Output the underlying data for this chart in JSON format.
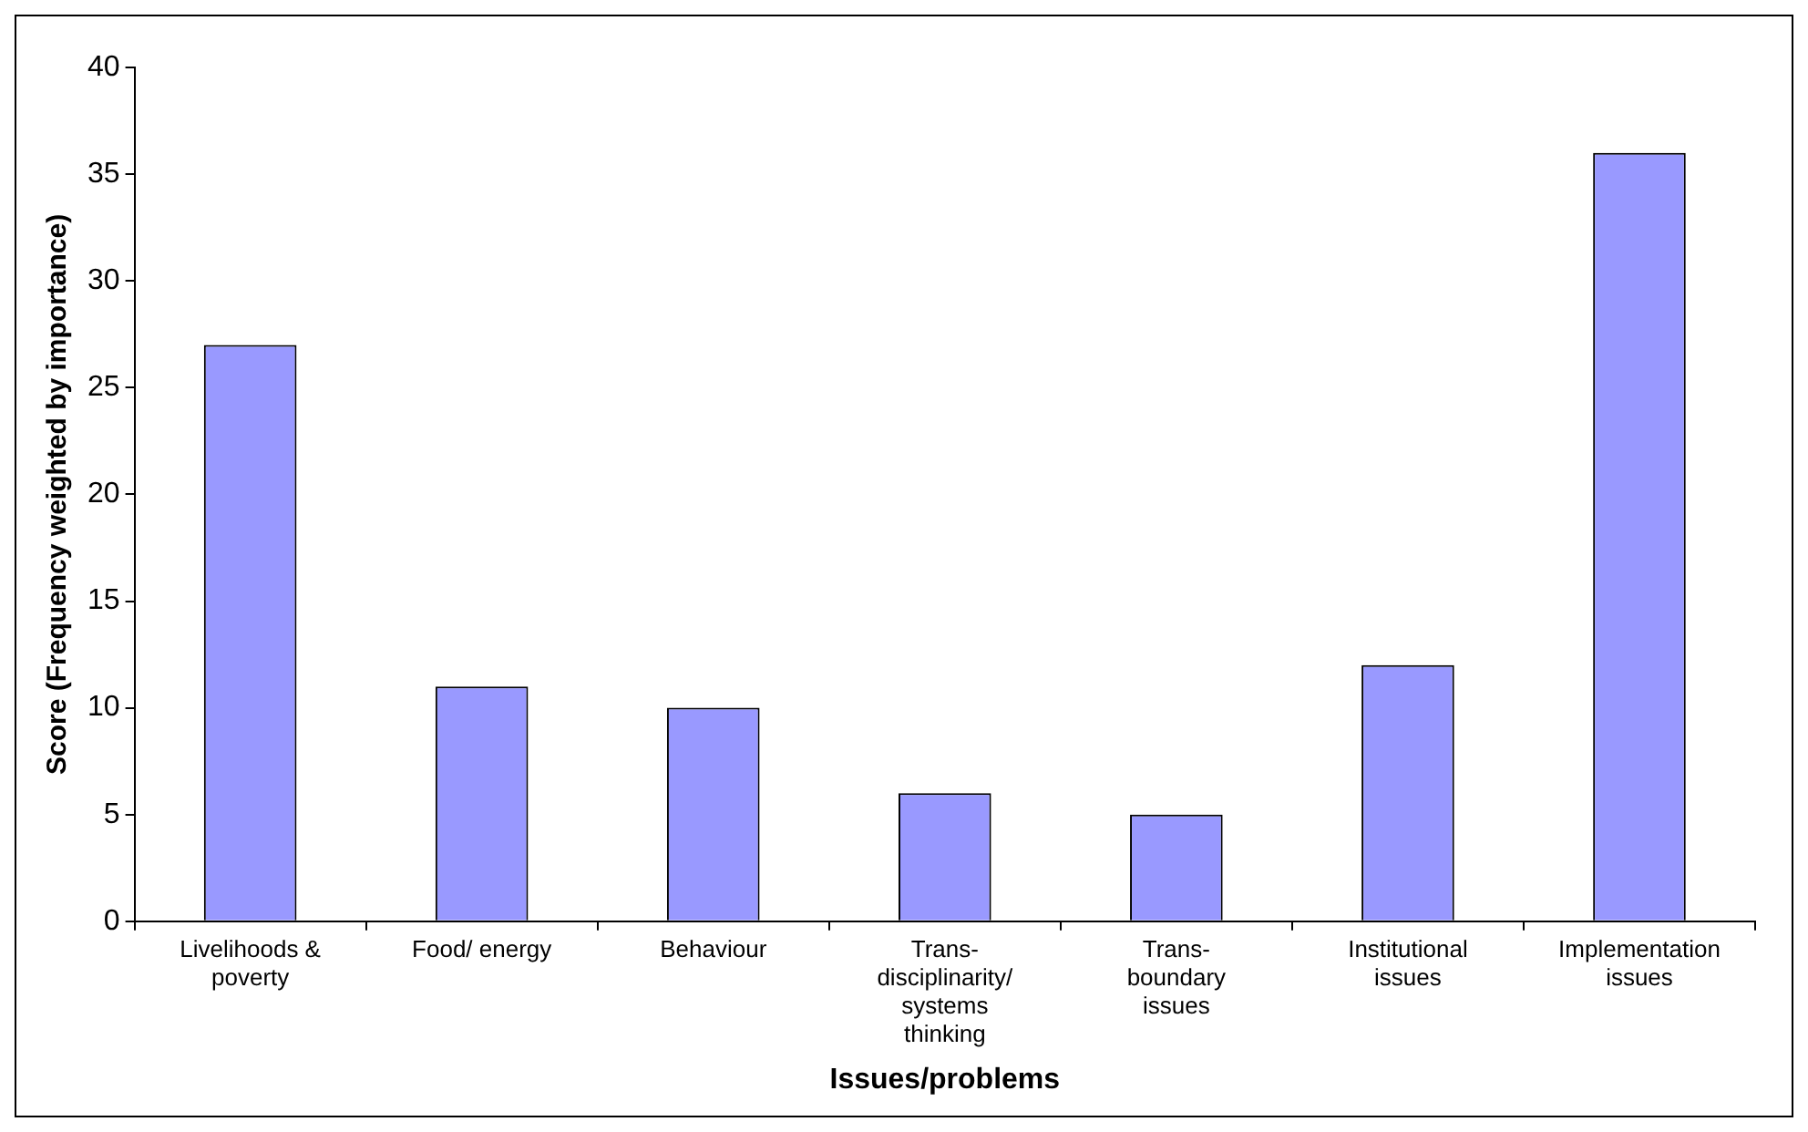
{
  "chart_data": {
    "type": "bar",
    "xlabel": "Issues/problems",
    "ylabel": "Score (Frequency weighted by importance)",
    "categories": [
      "Livelihoods & poverty",
      "Food/ energy",
      "Behaviour",
      "Trans-disciplinarity/ systems thinking",
      "Trans-boundary issues",
      "Institutional issues",
      "Implementation issues"
    ],
    "values": [
      27,
      11,
      10,
      6,
      5,
      12,
      36
    ],
    "color": "#9999ff",
    "ylim": [
      0,
      40
    ],
    "yticks": [
      0,
      5,
      10,
      15,
      20,
      25,
      30,
      35,
      40
    ],
    "grid": false,
    "legend": false
  }
}
